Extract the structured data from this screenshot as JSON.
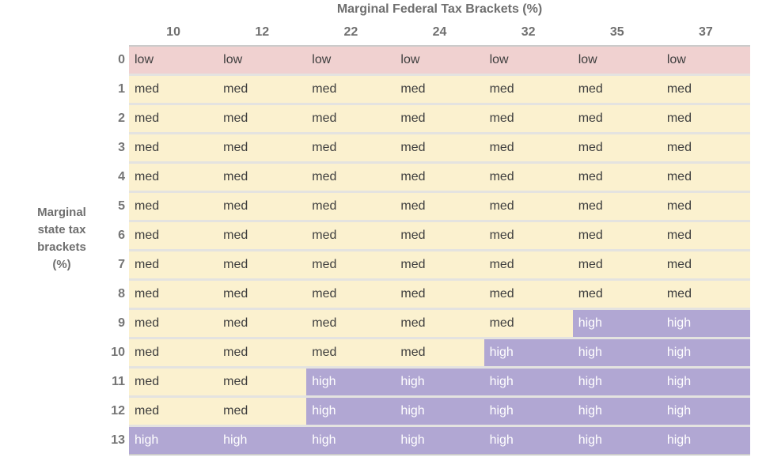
{
  "figure": {
    "y_axis_title_lines": [
      "Marginal",
      "state tax",
      "brackets",
      "(%)"
    ]
  },
  "colors": {
    "low_bg": "#F0D1D0",
    "med_bg": "#FBF1CF",
    "high_bg": "#B1A7D3",
    "cell_text_dark": "#3E3E3E",
    "cell_text_light": "#FFFFFF",
    "header_text": "#6F6F6F",
    "row_label_text": "#757575",
    "row_separator": "#E4E3E0",
    "table_border": "#CBCBCB"
  },
  "chart_data": {
    "type": "heatmap",
    "title": "Marginal Federal Tax Brackets (%)",
    "xlabel": "Marginal Federal Tax Brackets (%)",
    "ylabel": "Marginal state tax brackets (%)",
    "x_categories": [
      "10",
      "12",
      "22",
      "24",
      "32",
      "35",
      "37"
    ],
    "y_categories": [
      "0",
      "1",
      "2",
      "3",
      "4",
      "5",
      "6",
      "7",
      "8",
      "9",
      "10",
      "11",
      "12",
      "13"
    ],
    "values": [
      [
        "low",
        "low",
        "low",
        "low",
        "low",
        "low",
        "low"
      ],
      [
        "med",
        "med",
        "med",
        "med",
        "med",
        "med",
        "med"
      ],
      [
        "med",
        "med",
        "med",
        "med",
        "med",
        "med",
        "med"
      ],
      [
        "med",
        "med",
        "med",
        "med",
        "med",
        "med",
        "med"
      ],
      [
        "med",
        "med",
        "med",
        "med",
        "med",
        "med",
        "med"
      ],
      [
        "med",
        "med",
        "med",
        "med",
        "med",
        "med",
        "med"
      ],
      [
        "med",
        "med",
        "med",
        "med",
        "med",
        "med",
        "med"
      ],
      [
        "med",
        "med",
        "med",
        "med",
        "med",
        "med",
        "med"
      ],
      [
        "med",
        "med",
        "med",
        "med",
        "med",
        "med",
        "med"
      ],
      [
        "med",
        "med",
        "med",
        "med",
        "med",
        "high",
        "high"
      ],
      [
        "med",
        "med",
        "med",
        "med",
        "high",
        "high",
        "high"
      ],
      [
        "med",
        "med",
        "high",
        "high",
        "high",
        "high",
        "high"
      ],
      [
        "med",
        "med",
        "high",
        "high",
        "high",
        "high",
        "high"
      ],
      [
        "high",
        "high",
        "high",
        "high",
        "high",
        "high",
        "high"
      ]
    ],
    "cell_value_labels": [
      "low",
      "med",
      "high"
    ],
    "grid": false,
    "legend": "none"
  }
}
